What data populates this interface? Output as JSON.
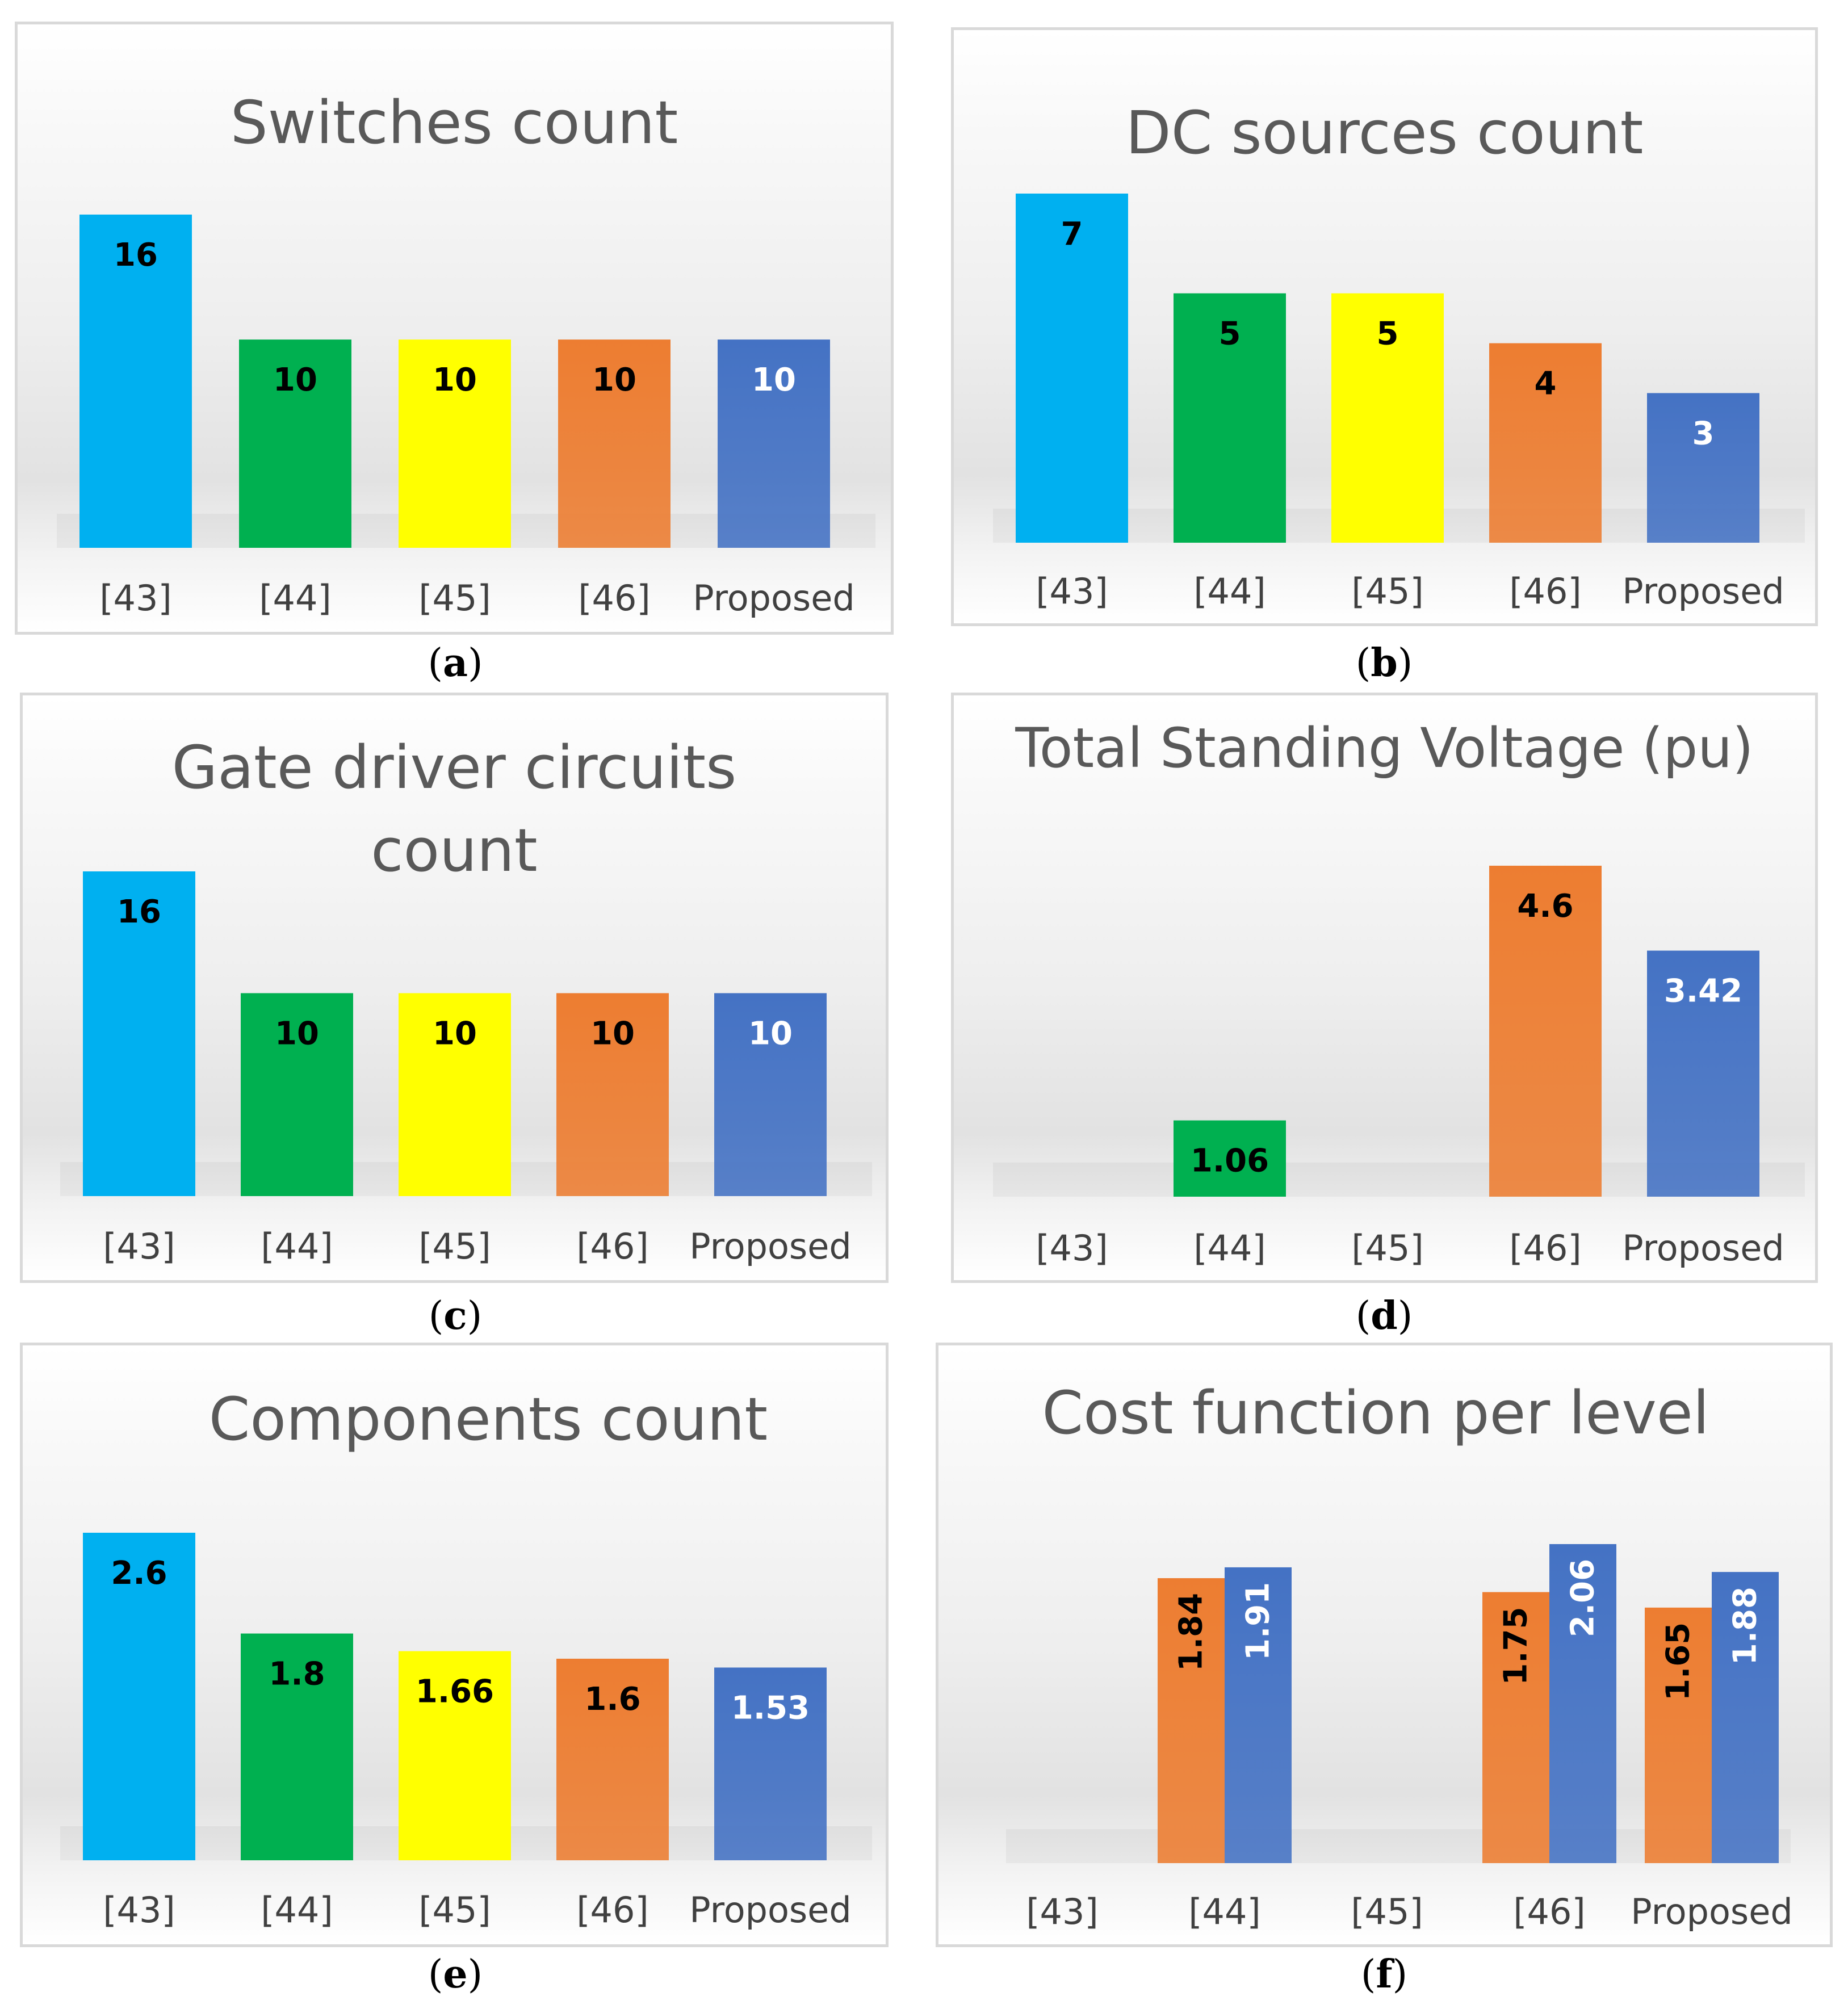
{
  "colors": {
    "ref43": "#00b0f0",
    "ref44": "#00b050",
    "ref45": "#ffff00",
    "ref46": "#ed7d31",
    "proposed": "#4472c4"
  },
  "chart_data": [
    {
      "id": "a",
      "caption": "a",
      "type": "bar",
      "title": "Switches count",
      "categories": [
        "[43]",
        "[44]",
        "[45]",
        "[46]",
        "Proposed"
      ],
      "values": [
        16,
        10,
        10,
        10,
        10
      ],
      "data_labels": [
        "16",
        "10",
        "10",
        "10",
        "10"
      ],
      "colors": [
        "ref43",
        "ref44",
        "ref45",
        "ref46",
        "proposed"
      ],
      "ylim": [
        0,
        20
      ]
    },
    {
      "id": "b",
      "caption": "b",
      "type": "bar",
      "title": "DC sources count",
      "categories": [
        "[43]",
        "[44]",
        "[45]",
        "[46]",
        "Proposed"
      ],
      "values": [
        7,
        5,
        5,
        4,
        3
      ],
      "data_labels": [
        "7",
        "5",
        "5",
        "4",
        "3"
      ],
      "colors": [
        "ref43",
        "ref44",
        "ref45",
        "ref46",
        "proposed"
      ],
      "ylim": [
        0,
        8
      ]
    },
    {
      "id": "c",
      "caption": "c",
      "type": "bar",
      "title": [
        "Gate driver circuits",
        "count"
      ],
      "categories": [
        "[43]",
        "[44]",
        "[45]",
        "[46]",
        "Proposed"
      ],
      "values": [
        16,
        10,
        10,
        10,
        10
      ],
      "data_labels": [
        "16",
        "10",
        "10",
        "10",
        "10"
      ],
      "colors": [
        "ref43",
        "ref44",
        "ref45",
        "ref46",
        "proposed"
      ],
      "ylim": [
        0,
        20
      ]
    },
    {
      "id": "d",
      "caption": "d",
      "type": "bar",
      "title": "Total Standing Voltage (pu)",
      "categories": [
        "[43]",
        "[44]",
        "[45]",
        "[46]",
        "Proposed"
      ],
      "values": [
        null,
        1.06,
        null,
        4.6,
        3.42
      ],
      "data_labels": [
        "",
        "1.06",
        "",
        "4.6",
        "3.42"
      ],
      "colors": [
        "ref43",
        "ref44",
        "ref45",
        "ref46",
        "proposed"
      ],
      "ylim": [
        0,
        5
      ]
    },
    {
      "id": "e",
      "caption": "e",
      "type": "bar",
      "title": "Components count",
      "categories": [
        "[43]",
        "[44]",
        "[45]",
        "[46]",
        "Proposed"
      ],
      "values": [
        2.6,
        1.8,
        1.66,
        1.6,
        1.53
      ],
      "data_labels": [
        "2.6",
        "1.8",
        "1.66",
        "1.6",
        "1.53"
      ],
      "colors": [
        "ref43",
        "ref44",
        "ref45",
        "ref46",
        "proposed"
      ],
      "ylim": [
        0,
        3
      ]
    },
    {
      "id": "f",
      "caption": "f",
      "type": "bar",
      "title": "Cost function per level",
      "categories": [
        "[43]",
        "[44]",
        "[45]",
        "[46]",
        "Proposed"
      ],
      "series": [
        {
          "name": "series1",
          "color": "ref46",
          "values": [
            null,
            1.84,
            null,
            1.75,
            1.65
          ],
          "data_labels": [
            "",
            "1.84",
            "",
            "1.75",
            "1.65"
          ]
        },
        {
          "name": "series2",
          "color": "proposed",
          "values": [
            null,
            1.91,
            null,
            2.06,
            1.88
          ],
          "data_labels": [
            "",
            "1.91",
            "",
            "2.06",
            "1.88"
          ]
        }
      ],
      "ylim": [
        0,
        2.2
      ]
    }
  ]
}
